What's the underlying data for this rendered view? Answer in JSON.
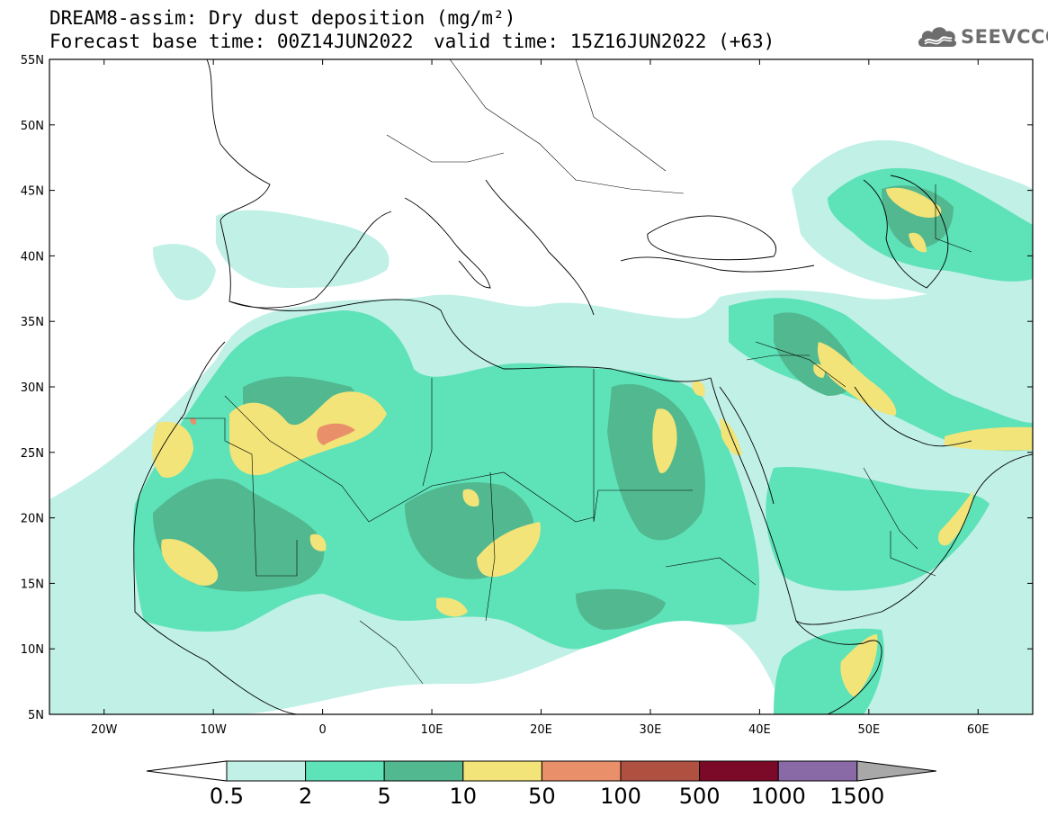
{
  "header": {
    "title": "DREAM8-assim: Dry dust deposition (mg/m²)",
    "base_time": "Forecast base time: 00Z14JUN2022",
    "valid_time": "valid time: 15Z16JUN2022 (+63)"
  },
  "logo": {
    "text": "SEEVCCC",
    "icon": "cloud-logo-icon"
  },
  "map": {
    "region": "North Africa, Europe and Middle East",
    "lon_range": [
      -25,
      65
    ],
    "lat_range": [
      5,
      55
    ],
    "lat_ticks": [
      "55N",
      "50N",
      "45N",
      "40N",
      "35N",
      "30N",
      "25N",
      "20N",
      "15N",
      "10N",
      "5N"
    ],
    "lon_ticks": [
      "20W",
      "10W",
      "0",
      "10E",
      "20E",
      "30E",
      "40E",
      "50E",
      "60E"
    ]
  },
  "colorbar": {
    "labels": [
      "0.5",
      "2",
      "5",
      "10",
      "50",
      "100",
      "500",
      "1000",
      "1500"
    ],
    "colors": [
      "#c0f0e6",
      "#5ee2b8",
      "#52b890",
      "#f2e479",
      "#e9906a",
      "#b05040",
      "#7a0a28",
      "#8a6aa6"
    ],
    "under_color": "#ffffff",
    "over_color": "#a8a8a8"
  }
}
